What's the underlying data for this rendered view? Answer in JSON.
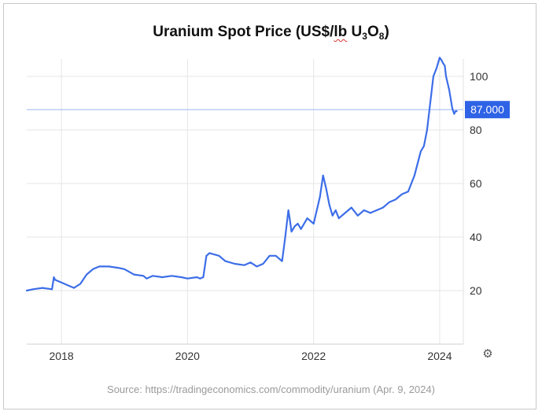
{
  "title": {
    "prefix": "Uranium Spot Price (US$/",
    "lb": "lb",
    "u": " U",
    "u_sub": "3",
    "o": "O",
    "o_sub": "8",
    "suffix": ")"
  },
  "source": "Source: https://tradingeconomics.com/commodity/uranium (Apr. 9, 2024)",
  "settings_icon": "gear-icon",
  "colors": {
    "line": "#3d6ee8",
    "marker_bg": "#2f63e6",
    "ref_line": "#9bb7f5",
    "grid": "#e6e6e6"
  },
  "chart_data": {
    "type": "line",
    "title": "Uranium Spot Price (US$/lb U3O8)",
    "xlim": [
      2017.45,
      2024.35
    ],
    "ylim": [
      0,
      108
    ],
    "x_ticks": [
      2018,
      2020,
      2022,
      2024
    ],
    "x_tick_labels": [
      "2018",
      "2020",
      "2022",
      "2024"
    ],
    "y_ticks": [
      20,
      40,
      60,
      80,
      100
    ],
    "y_tick_labels": [
      "20",
      "40",
      "60",
      "80",
      "100"
    ],
    "grid": true,
    "current_value": 87,
    "current_label": "87.000",
    "series": [
      {
        "x": [
          2017.45,
          2017.55,
          2017.7,
          2017.85,
          2017.88,
          2017.9,
          2018.0,
          2018.1,
          2018.2,
          2018.3,
          2018.4,
          2018.5,
          2018.6,
          2018.75,
          2018.9,
          2019.0,
          2019.15,
          2019.3,
          2019.35,
          2019.45,
          2019.6,
          2019.75,
          2019.9,
          2020.0,
          2020.15,
          2020.2,
          2020.25,
          2020.3,
          2020.35,
          2020.5,
          2020.6,
          2020.75,
          2020.9,
          2021.0,
          2021.1,
          2021.2,
          2021.3,
          2021.4,
          2021.5,
          2021.55,
          2021.6,
          2021.62,
          2021.65,
          2021.7,
          2021.75,
          2021.8,
          2021.9,
          2022.0,
          2022.1,
          2022.15,
          2022.2,
          2022.25,
          2022.3,
          2022.35,
          2022.4,
          2022.5,
          2022.6,
          2022.7,
          2022.8,
          2022.9,
          2023.0,
          2023.1,
          2023.2,
          2023.3,
          2023.4,
          2023.5,
          2023.55,
          2023.6,
          2023.7,
          2023.75,
          2023.8,
          2023.85,
          2023.9,
          2023.95,
          2024.0,
          2024.03,
          2024.05,
          2024.08,
          2024.1,
          2024.15,
          2024.2,
          2024.23,
          2024.25,
          2024.27
        ],
        "y": [
          20,
          20.5,
          21,
          20.5,
          25,
          24,
          23,
          22,
          21,
          22.5,
          26,
          28,
          29,
          29,
          28.5,
          28,
          26,
          25.5,
          24.5,
          25.5,
          25,
          25.5,
          25,
          24.5,
          25,
          24.5,
          25,
          33,
          34,
          33,
          31,
          30,
          29.5,
          30.5,
          29,
          30,
          33,
          33,
          31,
          40,
          50,
          47,
          42,
          44,
          45,
          43,
          47,
          45,
          55,
          63,
          58,
          52,
          48,
          50,
          47,
          49,
          51,
          48,
          50,
          49,
          50,
          51,
          53,
          54,
          56,
          57,
          60,
          63,
          72,
          74,
          80,
          90,
          100,
          103,
          107,
          106,
          105,
          104,
          100,
          95,
          88,
          86,
          87,
          87
        ]
      }
    ]
  }
}
